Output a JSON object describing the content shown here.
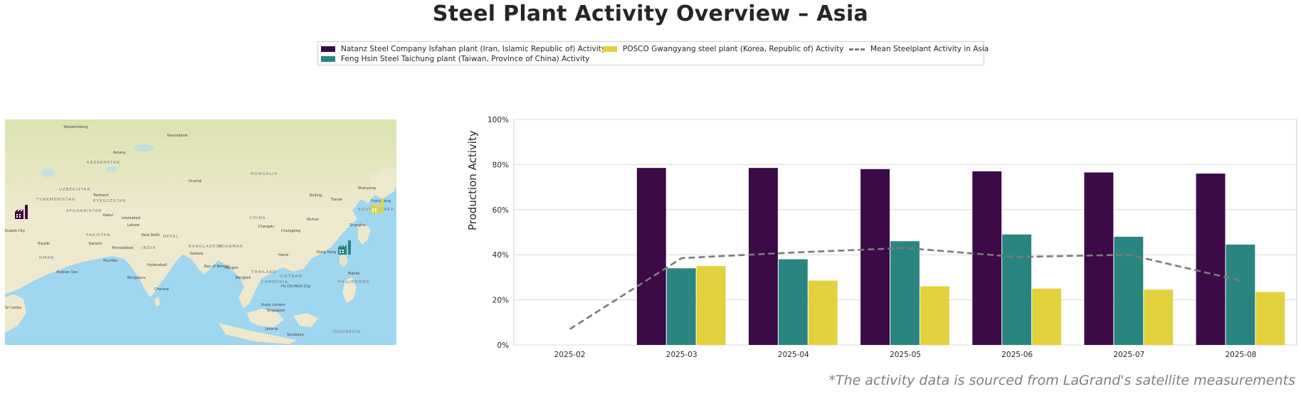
{
  "title": "Steel Plant Activity Overview – Asia",
  "footer": "*The activity data is sourced from LaGrand's satellite measurements",
  "legend": {
    "natanz": "Natanz Steel Company Isfahan plant (Iran, Islamic Republic of) Activity",
    "feng": "Feng Hsin Steel Taichung plant (Taiwan, Province of China) Activity",
    "posco": "POSCO Gwangyang steel plant (Korea, Republic of) Activity",
    "mean": "Mean Steelplant Activity in Asia"
  },
  "colors": {
    "natanz": "#3b0a47",
    "feng": "#2a8580",
    "posco": "#e2d13c",
    "mean": "#7a7a7a"
  },
  "map": {
    "labels": [
      "Yekaterinburg",
      "Novosibirsk",
      "Astana",
      "KAZAKHSTAN",
      "MONGOLIA",
      "Urumqi",
      "Shenyang",
      "Beijing",
      "Tianjin",
      "UZBEKISTAN",
      "TURKMENISTAN",
      "KYRGYZSTAN",
      "Tashkent",
      "AFGHANISTAN",
      "Kabul",
      "Islamabad",
      "Lahore",
      "New Delhi",
      "NEPAL",
      "CHINA",
      "Chengdu",
      "Chongqing",
      "Wuhan",
      "Shanghai",
      "SOUTH KOREA",
      "Pyongyang",
      "Karachi",
      "PAKISTAN",
      "Kuwait City",
      "Riyadh",
      "OMAN",
      "Mumbai",
      "INDIA",
      "Hyderabad",
      "Bengaluru",
      "Chennai",
      "Kolkata",
      "BANGLADESH",
      "MYANMAR",
      "Yangon",
      "THAILAND",
      "Bangkok",
      "VIETNAM",
      "Hong Kong",
      "Manila",
      "PHILIPPINES",
      "Ho Chi Minh City",
      "Kuala Lumpur",
      "Singapore",
      "Jakarta",
      "INDONESIA",
      "Surabaya",
      "Arabian Sea",
      "Bay of Bengal",
      "Ahmedabad",
      "Hanoi",
      "CAMBODIA",
      "Sri Lanka"
    ]
  },
  "chart_data": {
    "type": "bar",
    "ylabel": "Production Activity",
    "xlabel": "",
    "ylim": [
      0,
      100
    ],
    "yticks": [
      "0%",
      "20%",
      "40%",
      "60%",
      "80%",
      "100%"
    ],
    "grid": true,
    "legend_position": "top-center",
    "categories": [
      "2025-02",
      "2025-03",
      "2025-04",
      "2025-05",
      "2025-06",
      "2025-07",
      "2025-08"
    ],
    "series": [
      {
        "name": "Natanz Steel Company Isfahan plant (Iran, Islamic Republic of) Activity",
        "key": "natanz",
        "values": [
          null,
          78.5,
          78.5,
          78,
          77,
          76.5,
          76
        ]
      },
      {
        "name": "Feng Hsin Steel Taichung plant (Taiwan, Province of China) Activity",
        "key": "feng",
        "values": [
          null,
          34,
          38,
          46,
          49,
          48,
          44.5
        ]
      },
      {
        "name": "POSCO Gwangyang steel plant (Korea, Republic of) Activity",
        "key": "posco",
        "values": [
          null,
          35,
          28.5,
          26,
          25,
          24.5,
          23.5
        ]
      }
    ],
    "line": {
      "name": "Mean Steelplant Activity in Asia",
      "key": "mean",
      "values": [
        7,
        38.5,
        41,
        43,
        39,
        40,
        28.5
      ]
    }
  }
}
